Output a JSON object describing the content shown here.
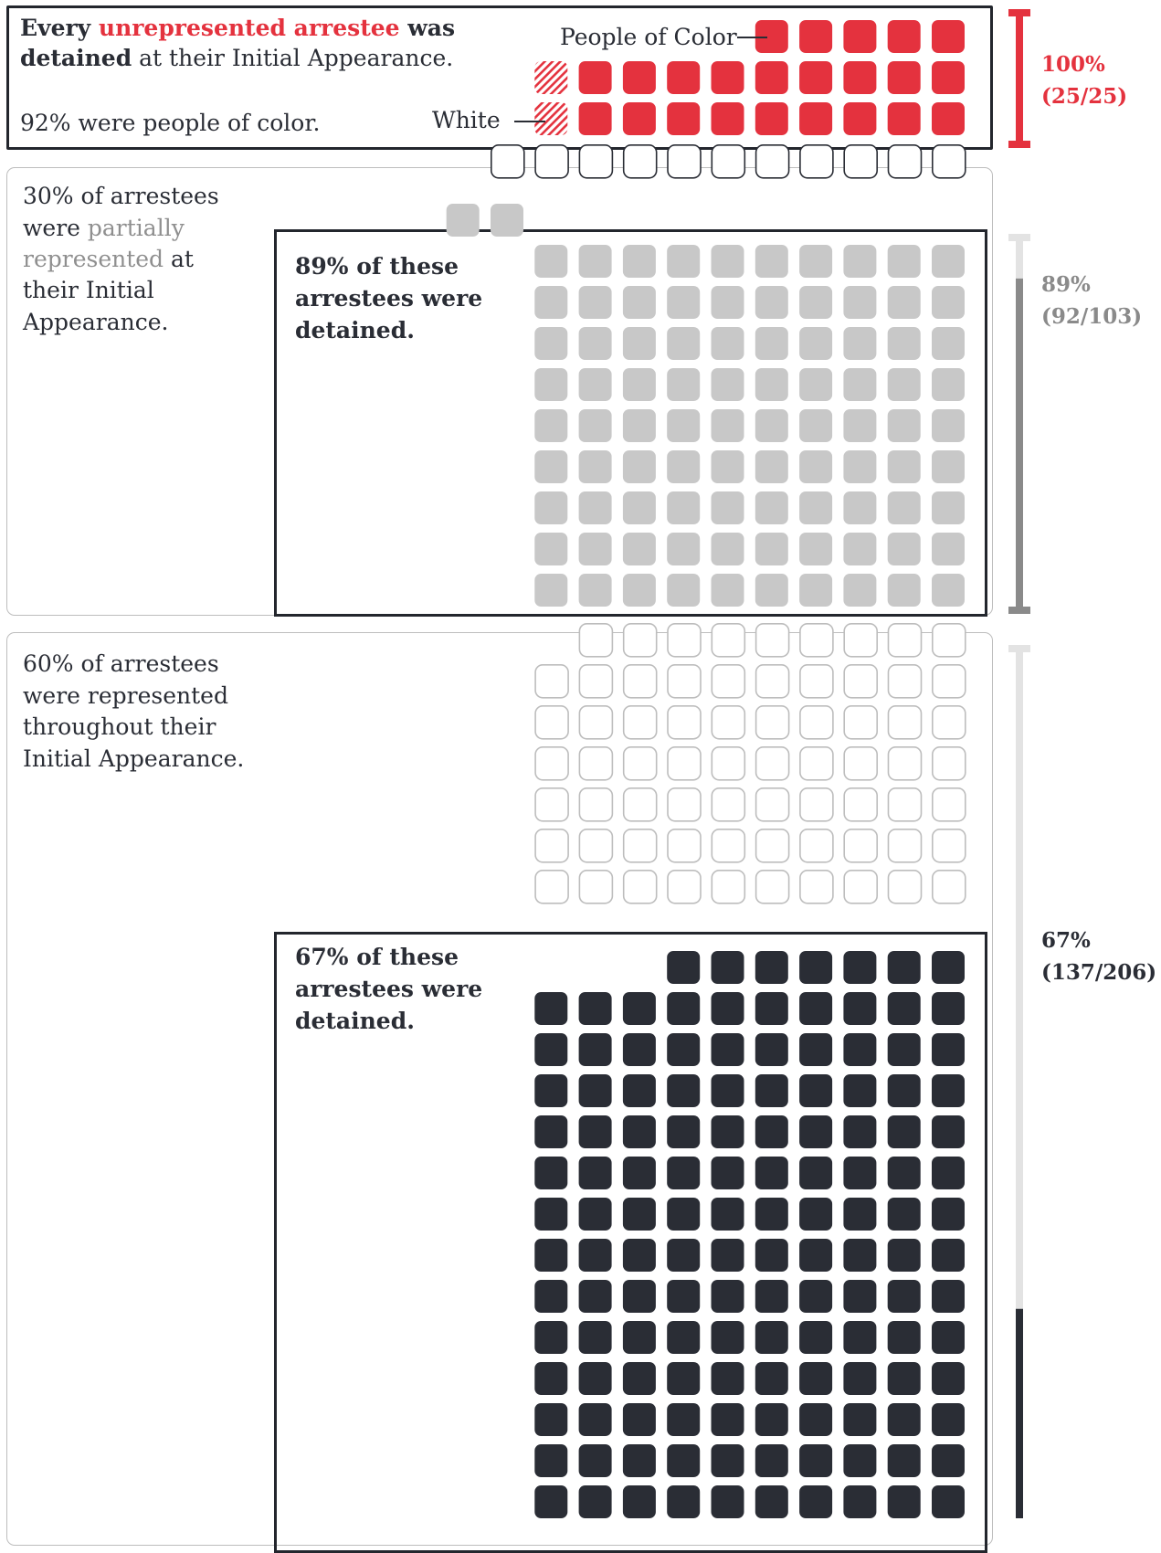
{
  "colors": {
    "accent_red": "#e4323e",
    "partial_grey": "#c8c8c8",
    "dark": "#2a2d35",
    "outline": "#bdbdbd",
    "bar_track": "#e3e3e3"
  },
  "unrepresented": {
    "headline_1": "Every ",
    "headline_highlight": "unrepresented arrestee",
    "headline_2": " was",
    "headline_bold_2": "detained",
    "headline_3": " at their Initial Appearance.",
    "subtext": "92% were people of color.",
    "label_poc": "People of Color",
    "label_white": "White",
    "stat_pct": "100%",
    "stat_frac": "(25/25)"
  },
  "partial": {
    "text_1": "30% of arrestees",
    "text_2a": "were ",
    "text_2b": "partially",
    "text_3a": "represented",
    "text_3b": " at",
    "text_4": "their Initial",
    "text_5": "Appearance.",
    "detained_text_1": "89% of these",
    "detained_text_2": "arrestees were",
    "detained_text_3": "detained.",
    "stat_pct": "89%",
    "stat_frac": "(92/103)"
  },
  "represented": {
    "text_1": "60% of arrestees",
    "text_2": "were represented",
    "text_3": "throughout their",
    "text_4": "Initial Appearance.",
    "detained_text_1": "67% of these",
    "detained_text_2": "arrestees were",
    "detained_text_3": "detained.",
    "stat_pct": "67%",
    "stat_frac": "(137/206)"
  },
  "chart_data": [
    {
      "type": "waffle",
      "title": "Every unrepresented arrestee was detained at their Initial Appearance.",
      "group": "Unrepresented",
      "total": 25,
      "detained": 25,
      "detained_pct": 100,
      "series": [
        {
          "name": "People of Color",
          "values": [
            23
          ]
        },
        {
          "name": "White",
          "values": [
            2
          ]
        }
      ],
      "annotation": "92% were people of color."
    },
    {
      "type": "waffle",
      "group": "Partially represented",
      "share_of_arrestees_pct": 30,
      "total": 103,
      "detained": 92,
      "not_detained": 11,
      "detained_pct": 89
    },
    {
      "type": "waffle",
      "group": "Represented throughout",
      "share_of_arrestees_pct": 60,
      "total": 206,
      "detained": 137,
      "not_detained": 69,
      "detained_pct": 67
    }
  ]
}
